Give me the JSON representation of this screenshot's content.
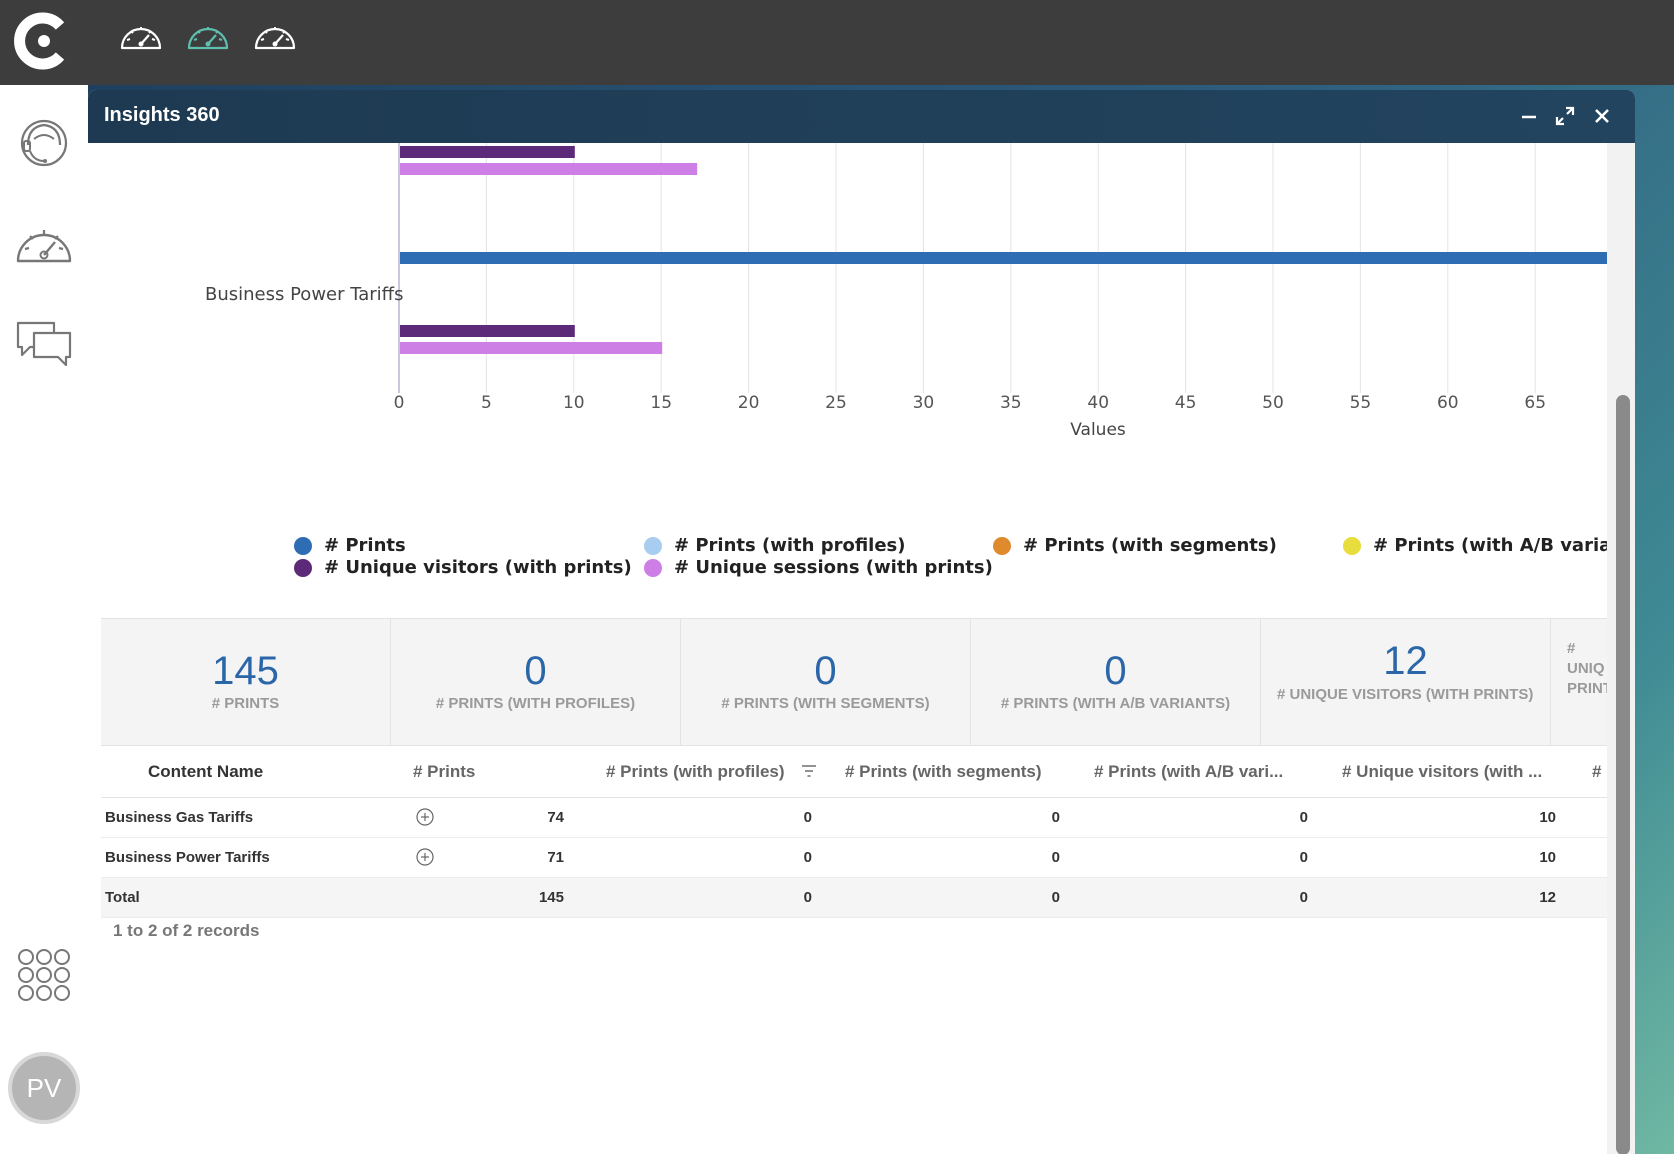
{
  "app": {
    "window_title": "Insights 360",
    "avatar_initials": "PV"
  },
  "chart_data": {
    "type": "bar",
    "orientation": "horizontal",
    "categories_visible": [
      "",
      "Business Power Tariffs"
    ],
    "xlabel": "Values",
    "xlim": [
      0,
      68
    ],
    "x_ticks": [
      "0",
      "5",
      "10",
      "15",
      "20",
      "25",
      "30",
      "35",
      "40",
      "45",
      "50",
      "55",
      "60",
      "65"
    ],
    "grid": true,
    "legend_position": "bottom",
    "series": [
      {
        "name": "# Prints",
        "color": "#2e6db4",
        "values": [
          null,
          71
        ]
      },
      {
        "name": "# Prints (with profiles)",
        "color": "#a9cdf0",
        "values": [
          null,
          0
        ]
      },
      {
        "name": "# Prints (with segments)",
        "color": "#e08a2e",
        "values": [
          null,
          0
        ]
      },
      {
        "name": "# Prints (with A/B variants)",
        "color": "#e8dd3c",
        "values": [
          null,
          0
        ]
      },
      {
        "name": "# Unique visitors (with prints)",
        "color": "#5c2a78",
        "values": [
          10,
          10
        ]
      },
      {
        "name": "# Unique sessions (with prints)",
        "color": "#cd7fe6",
        "values": [
          17,
          15
        ]
      }
    ]
  },
  "kpis": [
    {
      "value": "145",
      "label": "# PRINTS"
    },
    {
      "value": "0",
      "label": "# PRINTS (WITH PROFILES)"
    },
    {
      "value": "0",
      "label": "# PRINTS (WITH SEGMENTS)"
    },
    {
      "value": "0",
      "label": "# PRINTS (WITH A/B VARIANTS)"
    },
    {
      "value": "12",
      "label": "# UNIQUE VISITORS (WITH PRINTS)"
    },
    {
      "value": "",
      "label": "# UNIQ PRINTS"
    }
  ],
  "table": {
    "headers": [
      "Content Name",
      "# Prints",
      "# Prints (with profiles)",
      "# Prints (with segments)",
      "# Prints (with A/B vari...",
      "# Unique visitors (with ...",
      "# U"
    ],
    "rows": [
      {
        "name": "Business Gas Tariffs",
        "prints": "74",
        "profiles": "0",
        "segments": "0",
        "ab": "0",
        "visitors": "10"
      },
      {
        "name": "Business Power Tariffs",
        "prints": "71",
        "profiles": "0",
        "segments": "0",
        "ab": "0",
        "visitors": "10"
      }
    ],
    "total": {
      "name": "Total",
      "prints": "145",
      "profiles": "0",
      "segments": "0",
      "ab": "0",
      "visitors": "12"
    },
    "records_text": "1 to 2 of 2 records"
  }
}
